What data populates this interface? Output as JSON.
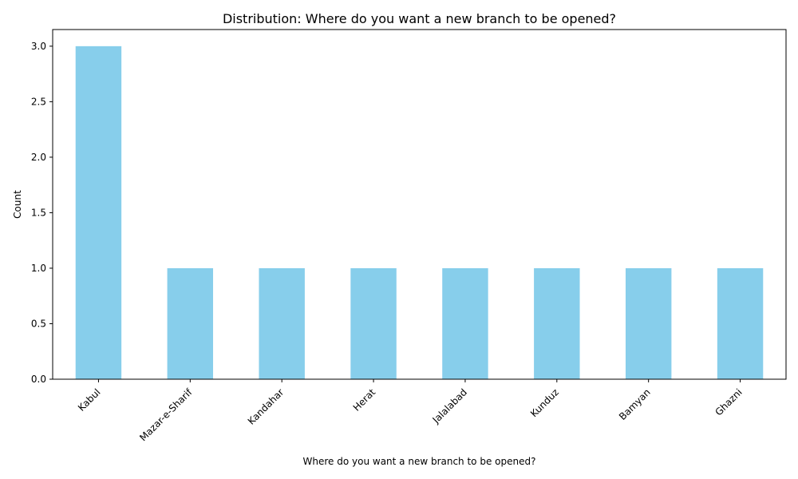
{
  "chart_data": {
    "type": "bar",
    "title": "Distribution: Where do you want a new branch to be opened?",
    "xlabel": "Where do you want a new branch to be opened?",
    "ylabel": "Count",
    "categories": [
      "Kabul",
      "Mazar-e-Sharif",
      "Kandahar",
      "Herat",
      "Jalalabad",
      "Kunduz",
      "Bamyan",
      "Ghazni"
    ],
    "values": [
      3,
      1,
      1,
      1,
      1,
      1,
      1,
      1
    ],
    "ylim": [
      0,
      3.15
    ],
    "yticks": [
      "0.0",
      "0.5",
      "1.0",
      "1.5",
      "2.0",
      "2.5",
      "3.0"
    ],
    "grid": false,
    "legend": "none",
    "colors": {
      "bar": "#87ceeb",
      "axis": "#000000",
      "text": "#000000",
      "background": "#ffffff"
    }
  }
}
